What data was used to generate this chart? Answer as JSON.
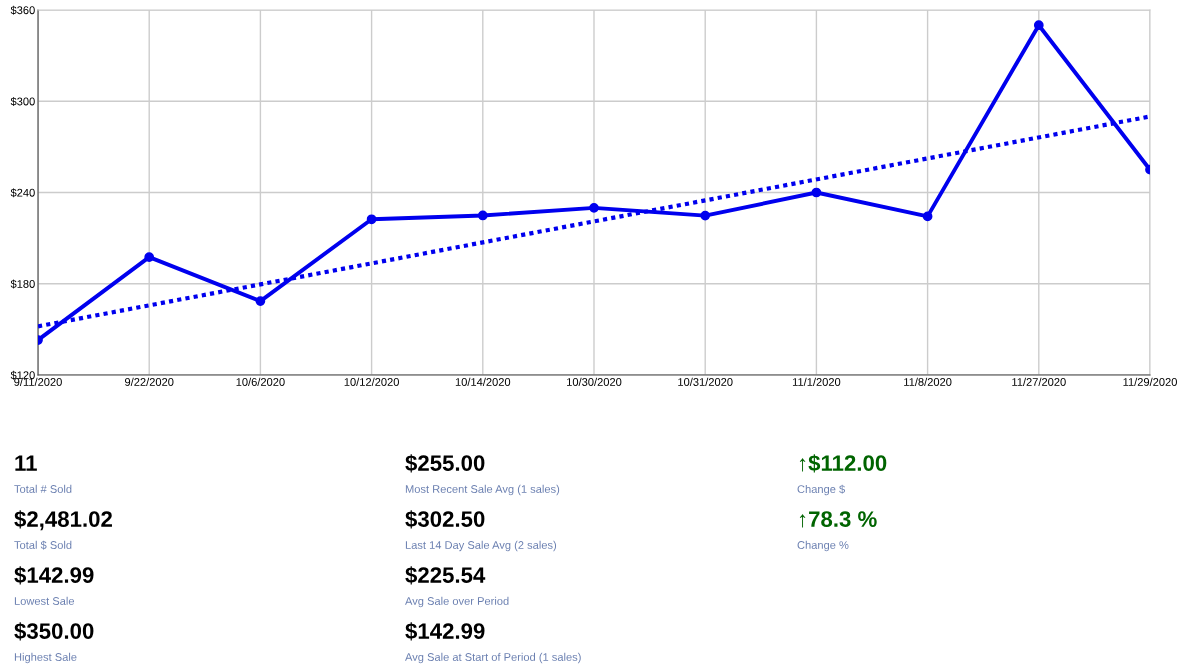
{
  "chart_data": [
    {
      "type": "line",
      "categories": [
        "9/11/2020",
        "9/22/2020",
        "10/6/2020",
        "10/12/2020",
        "10/14/2020",
        "10/30/2020",
        "10/31/2020",
        "11/1/2020",
        "11/8/2020",
        "11/27/2020",
        "11/29/2020"
      ],
      "series": [
        {
          "color": "#0000ee",
          "values": [
            142.99,
            197.5,
            168.6,
            222.4,
            224.9,
            229.9,
            224.8,
            240,
            224.3,
            350,
            255
          ],
          "marker": "circle",
          "line_style": "solid"
        },
        {
          "color": "#0000ee",
          "x": [
            "9/11/2020",
            "11/29/2020"
          ],
          "values": [
            152,
            290
          ],
          "marker": "none",
          "line_style": "dotted"
        }
      ],
      "ylim": [
        120,
        360
      ],
      "yticks": [
        {
          "value": 120,
          "label": "$120"
        },
        {
          "value": 180,
          "label": "$180"
        },
        {
          "value": 240,
          "label": "$240"
        },
        {
          "value": 300,
          "label": "$300"
        },
        {
          "value": 360,
          "label": "$360"
        }
      ],
      "grid": true,
      "legend": false
    },
    {
      "type": "other",
      "annotations": [
        "11",
        "Total # Sold",
        "$2,481.02",
        "Total $ Sold",
        "$142.99",
        "Lowest Sale",
        "$350.00",
        "Highest Sale",
        "$255.00",
        "Most Recent Sale Avg (1 sales)",
        "$302.50",
        "Last 14 Day Sale Avg (2 sales)",
        "$225.54",
        "Avg Sale over Period",
        "$142.99",
        "Avg Sale at Start of Period (1 sales)",
        "↑$112.00",
        "Change $",
        "↑78.3 %",
        "Change %"
      ]
    }
  ]
}
